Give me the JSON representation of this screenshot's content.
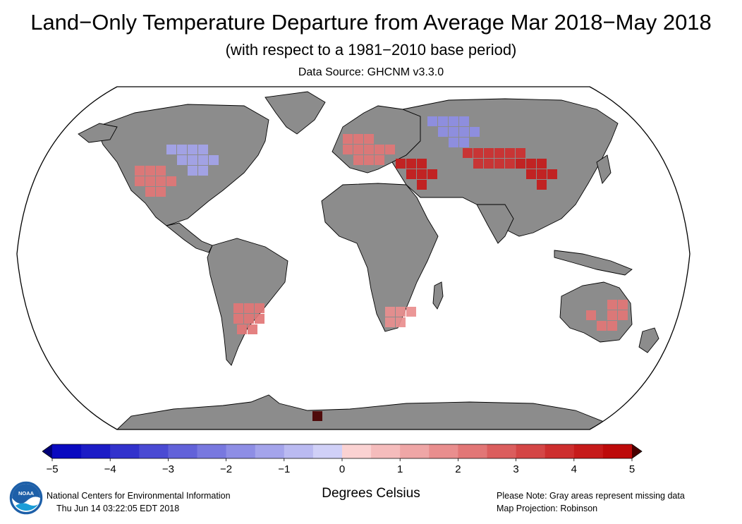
{
  "header": {
    "title": "Land−Only Temperature Departure from Average Mar 2018−May 2018",
    "subtitle": "(with respect to a 1981−2010 base period)",
    "source": "Data Source: GHCNM v3.3.0"
  },
  "map": {
    "projection_label": "Map Projection: Robinson",
    "land_color": "#8c8c8c",
    "missing_color": "#8c8c8c",
    "ocean_color": "#ffffff",
    "anomaly_regions": [
      {
        "region": "Western & Central Europe",
        "anomaly_c": 2
      },
      {
        "region": "Turkey / Middle East",
        "anomaly_c": 4
      },
      {
        "region": "Central Asia / Mongolia",
        "anomaly_c": 3.5
      },
      {
        "region": "Northern China",
        "anomaly_c": 4
      },
      {
        "region": "Western Russia",
        "anomaly_c": -2
      },
      {
        "region": "Central Canada / Great Lakes",
        "anomaly_c": -1.5
      },
      {
        "region": "Southwest United States / Mexico",
        "anomaly_c": 2
      },
      {
        "region": "Argentina",
        "anomaly_c": 2
      },
      {
        "region": "Eastern Australia",
        "anomaly_c": 2
      },
      {
        "region": "South Africa",
        "anomaly_c": 1.5
      },
      {
        "region": "Antarctic Peninsula",
        "anomaly_c": 5
      }
    ]
  },
  "colorbar": {
    "ticks": [
      "−5",
      "−4",
      "−3",
      "−2",
      "−1",
      "0",
      "1",
      "2",
      "3",
      "4",
      "5"
    ],
    "tick_values": [
      -5,
      -4,
      -3,
      -2,
      -1,
      0,
      1,
      2,
      3,
      4,
      5
    ],
    "bins": [
      {
        "low": -5,
        "high": -4.5,
        "color": "#0a0ac0"
      },
      {
        "low": -4.5,
        "high": -4,
        "color": "#1c1cc6"
      },
      {
        "low": -4,
        "high": -3.5,
        "color": "#3232cc"
      },
      {
        "low": -3.5,
        "high": -3,
        "color": "#4a4ad3"
      },
      {
        "low": -3,
        "high": -2.5,
        "color": "#6262d9"
      },
      {
        "low": -2.5,
        "high": -2,
        "color": "#7878df"
      },
      {
        "low": -2,
        "high": -1.5,
        "color": "#8e8ee5"
      },
      {
        "low": -1.5,
        "high": -1,
        "color": "#a4a4eb"
      },
      {
        "low": -1,
        "high": -0.5,
        "color": "#babaf1"
      },
      {
        "low": -0.5,
        "high": 0,
        "color": "#d0d0f7"
      },
      {
        "low": 0,
        "high": 0.5,
        "color": "#fad2d2"
      },
      {
        "low": 0.5,
        "high": 1,
        "color": "#f5bcbc"
      },
      {
        "low": 1,
        "high": 1.5,
        "color": "#efa6a6"
      },
      {
        "low": 1.5,
        "high": 2,
        "color": "#e98e8e"
      },
      {
        "low": 2,
        "high": 2.5,
        "color": "#e27676"
      },
      {
        "low": 2.5,
        "high": 3,
        "color": "#db5e5e"
      },
      {
        "low": 3,
        "high": 3.5,
        "color": "#d44646"
      },
      {
        "low": 3.5,
        "high": 4,
        "color": "#cd2e2e"
      },
      {
        "low": 4,
        "high": 4.5,
        "color": "#c61a1a"
      },
      {
        "low": 4.5,
        "high": 5,
        "color": "#bd0a0a"
      }
    ],
    "under_color": "#000078",
    "over_color": "#4a0000",
    "units": "Degrees Celsius"
  },
  "footer": {
    "org": "National Centers for Environmental Information",
    "timestamp": "Thu Jun 14 03:22:05 EDT 2018",
    "note": "Please Note: Gray areas represent missing data",
    "projection": "Map Projection: Robinson"
  },
  "logo": {
    "text": "NOAA",
    "icon": "noaa-logo-icon"
  }
}
